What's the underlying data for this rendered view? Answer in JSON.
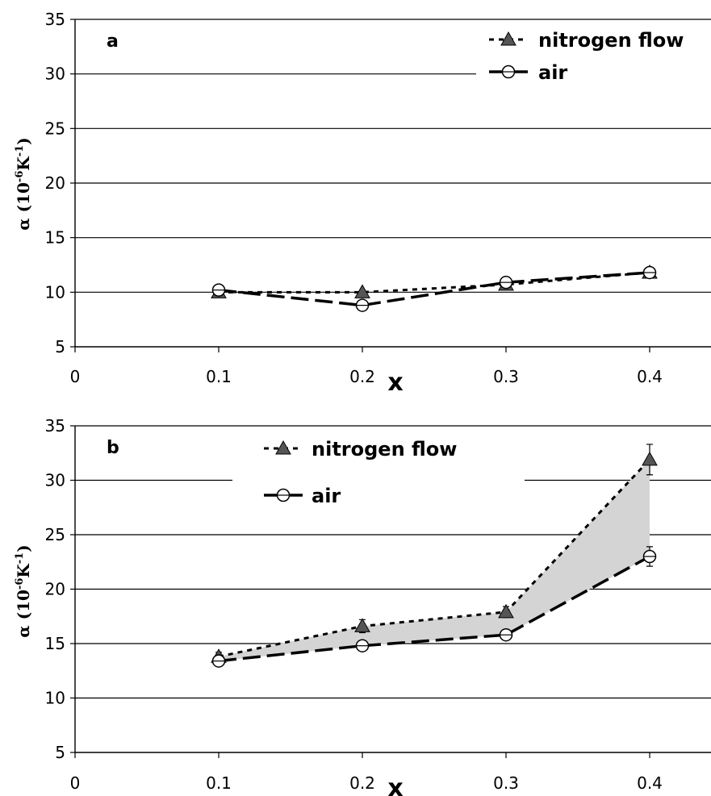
{
  "chart_data": [
    {
      "type": "line",
      "panel_label": "a",
      "xlabel": "x",
      "ylabel": "α (10",
      "ylabel_sup": "-6",
      "ylabel_unit": "K",
      "ylabel_sup2": "-1",
      "ylabel_close": ")",
      "xlim": [
        0,
        0.44
      ],
      "ylim": [
        5,
        35
      ],
      "xticks": [
        "0",
        "0.1",
        "0.2",
        "0.3",
        "0.4"
      ],
      "yticks": [
        "5",
        "10",
        "15",
        "20",
        "25",
        "30",
        "35"
      ],
      "grid": "horizontal",
      "legend_position": "top-right",
      "shaded_between_series": false,
      "x": [
        0.1,
        0.2,
        0.3,
        0.4
      ],
      "series": [
        {
          "name": "nitrogen flow",
          "values": [
            10.0,
            10.0,
            10.7,
            11.8
          ],
          "marker": "filled-triangle",
          "line": "dotted"
        },
        {
          "name": "air",
          "values": [
            10.2,
            8.8,
            10.9,
            11.8
          ],
          "marker": "open-circle",
          "line": "dashed"
        }
      ]
    },
    {
      "type": "line",
      "panel_label": "b",
      "xlabel": "x",
      "ylabel": "α (10",
      "ylabel_sup": "-6",
      "ylabel_unit": "K",
      "ylabel_sup2": "-1",
      "ylabel_close": ")",
      "xlim": [
        0,
        0.44
      ],
      "ylim": [
        5,
        35
      ],
      "xticks": [
        "0",
        "0.1",
        "0.2",
        "0.3",
        "0.4"
      ],
      "yticks": [
        "5",
        "10",
        "15",
        "20",
        "25",
        "30",
        "35"
      ],
      "grid": "horizontal",
      "legend_position": "top-center",
      "shaded_between_series": true,
      "shade_color": "#d4d4d4",
      "x": [
        0.1,
        0.2,
        0.3,
        0.4
      ],
      "series": [
        {
          "name": "nitrogen flow",
          "values": [
            13.8,
            16.6,
            17.9,
            31.9
          ],
          "errors": [
            0.4,
            0.6,
            0.5,
            1.4
          ],
          "marker": "filled-triangle",
          "line": "dotted"
        },
        {
          "name": "air",
          "values": [
            13.4,
            14.8,
            15.8,
            23.0
          ],
          "errors": [
            0.3,
            0.3,
            0.4,
            0.9
          ],
          "marker": "open-circle",
          "line": "dashed"
        }
      ]
    }
  ],
  "colors": {
    "grid": "#000000",
    "triangle_fill": "#555555",
    "circle_fill": "#ffffff",
    "shade": "#d4d4d4"
  }
}
